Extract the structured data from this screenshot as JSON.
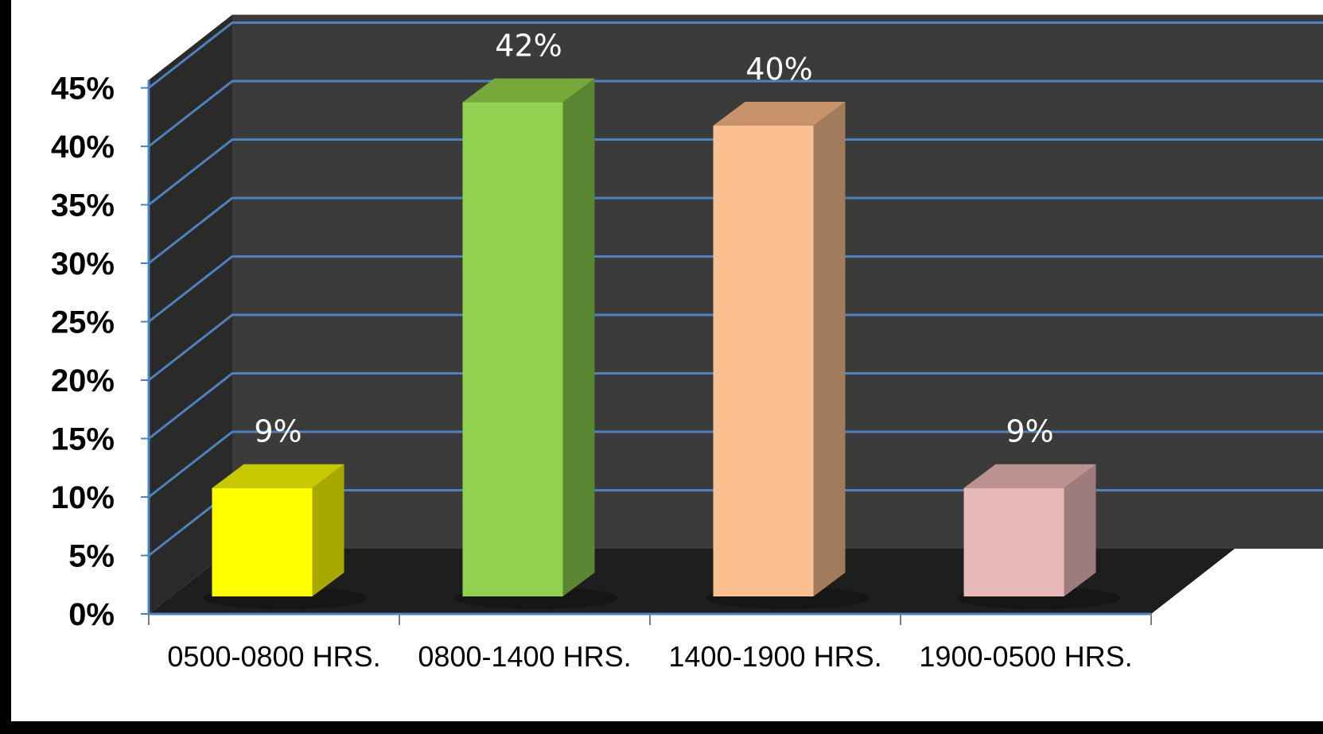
{
  "chart_data": {
    "type": "bar",
    "style": "3d-column",
    "categories": [
      "0500-0800 HRS.",
      "0800-1400 HRS.",
      "1400-1900 HRS.",
      "1900-0500 HRS."
    ],
    "values": [
      9,
      42,
      40,
      9
    ],
    "data_labels": [
      "9%",
      "42%",
      "40%",
      "9%"
    ],
    "y_ticks": [
      "0%",
      "5%",
      "10%",
      "15%",
      "20%",
      "25%",
      "30%",
      "35%",
      "40%",
      "45%"
    ],
    "ylim": [
      0,
      45
    ],
    "grid": true,
    "legend": "none",
    "colors": {
      "bars": [
        "#ffff00",
        "#92d050",
        "#fac090",
        "#e6b9b8"
      ],
      "bar_sides": [
        "#a8a800",
        "#5a8532",
        "#a17b5c",
        "#9e7c7b"
      ],
      "bar_tops": [
        "#c8c800",
        "#76a83c",
        "#c8936a",
        "#bc9190"
      ],
      "back_wall": "#3b3b3b",
      "side_wall": "#2a2a2a",
      "floor": "#1e1e1e",
      "gridline": "#4f81bd"
    }
  }
}
